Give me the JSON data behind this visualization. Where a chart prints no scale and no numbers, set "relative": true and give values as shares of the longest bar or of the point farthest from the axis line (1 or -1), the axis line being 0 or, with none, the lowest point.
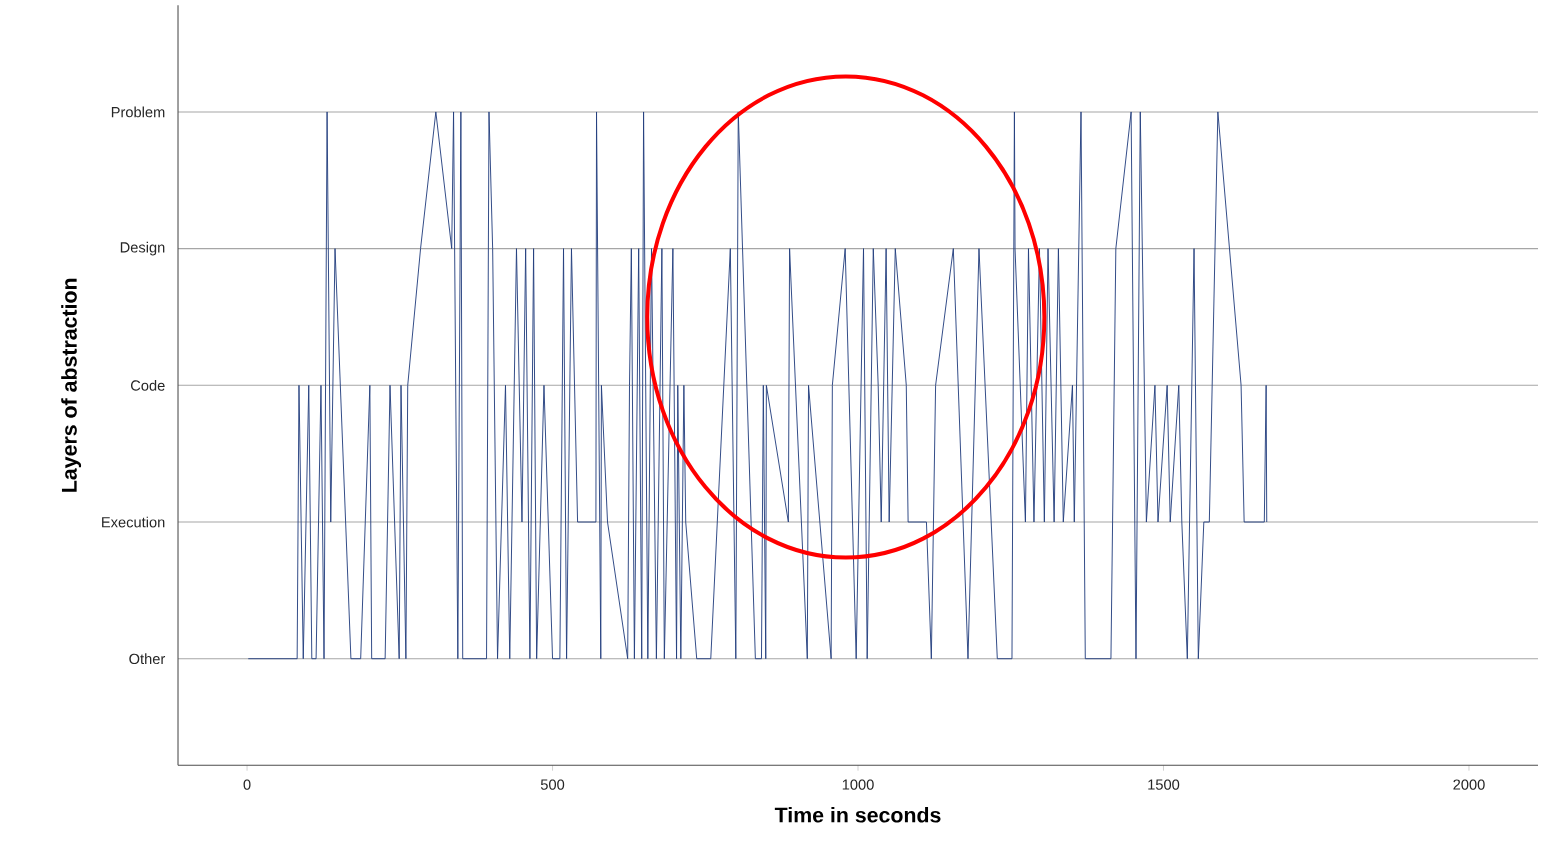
{
  "chart_data": {
    "type": "line",
    "xlabel": "Time in seconds",
    "ylabel": "Layers of abstraction",
    "xlim": [
      -113,
      2113
    ],
    "y_categories": [
      "Problem",
      "Design",
      "Code",
      "Execution",
      "Other"
    ],
    "xticks": [
      0,
      500,
      1000,
      1500,
      2000
    ],
    "relative": true,
    "grid": "y",
    "marker": "none",
    "line_style": "solid",
    "series": [
      {
        "color": "#253f7f",
        "x": [
          2,
          82,
          85,
          92,
          101,
          106,
          113,
          121,
          126,
          131,
          137,
          144,
          170,
          186,
          201,
          204,
          226,
          234,
          249,
          252,
          260,
          263,
          284,
          309,
          335,
          338,
          345,
          350,
          353,
          392,
          396,
          402,
          410,
          423,
          430,
          441,
          450,
          456,
          463,
          469,
          474,
          486,
          500,
          512,
          518,
          523,
          531,
          541,
          571,
          572,
          579,
          580,
          590,
          623,
          626,
          629,
          634,
          641,
          646,
          649,
          656,
          662,
          670,
          679,
          683,
          697,
          703,
          705,
          710,
          715,
          718,
          736,
          759,
          791,
          800,
          804,
          832,
          842,
          845,
          849,
          850,
          886,
          888,
          917,
          919,
          956,
          958,
          979,
          997,
          1009,
          1015,
          1025,
          1033,
          1038,
          1046,
          1051,
          1061,
          1079,
          1082,
          1112,
          1120,
          1127,
          1156,
          1180,
          1198,
          1228,
          1252,
          1256,
          1257,
          1274,
          1279,
          1288,
          1297,
          1305,
          1311,
          1321,
          1328,
          1336,
          1351,
          1354,
          1365,
          1372,
          1414,
          1422,
          1447,
          1455,
          1462,
          1472,
          1486,
          1491,
          1506,
          1511,
          1525,
          1530,
          1539,
          1550,
          1557,
          1566,
          1575,
          1589,
          1627,
          1632,
          1665,
          1668,
          1669
        ],
        "values": [
          0,
          0,
          0.5,
          0,
          0.5,
          0,
          0,
          0.5,
          0,
          1,
          0.25,
          0.75,
          0,
          0,
          0.5,
          0,
          0,
          0.5,
          0,
          0.5,
          0,
          0.5,
          0.75,
          1,
          0.75,
          1,
          0,
          1,
          0,
          0,
          1,
          0.75,
          0,
          0.5,
          0,
          0.75,
          0.25,
          0.75,
          0,
          0.75,
          0,
          0.5,
          0,
          0,
          0.75,
          0,
          0.75,
          0.25,
          0.25,
          1,
          0,
          0.5,
          0.25,
          0,
          0.5,
          0.75,
          0,
          0.75,
          0,
          1,
          0,
          0.75,
          0,
          0.75,
          0,
          0.75,
          0,
          0.5,
          0,
          0.5,
          0.25,
          0,
          0,
          0.75,
          0,
          1,
          0,
          0,
          0.5,
          0,
          0.5,
          0.25,
          0.75,
          0,
          0.5,
          0,
          0.5,
          0.75,
          0,
          0.75,
          0,
          0.75,
          0.5,
          0.25,
          0.75,
          0.25,
          0.75,
          0.5,
          0.25,
          0.25,
          0,
          0.5,
          0.75,
          0,
          0.75,
          0,
          0,
          1,
          0.75,
          0.25,
          0.75,
          0.25,
          0.75,
          0.25,
          0.75,
          0.25,
          0.75,
          0.25,
          0.5,
          0.25,
          1,
          0,
          0,
          0.75,
          1,
          0,
          1,
          0.25,
          0.5,
          0.25,
          0.5,
          0.25,
          0.5,
          0.25,
          0,
          0.75,
          0,
          0.25,
          0.25,
          1,
          0.5,
          0.25,
          0.25,
          0.5,
          0.25
        ]
      }
    ]
  }
}
